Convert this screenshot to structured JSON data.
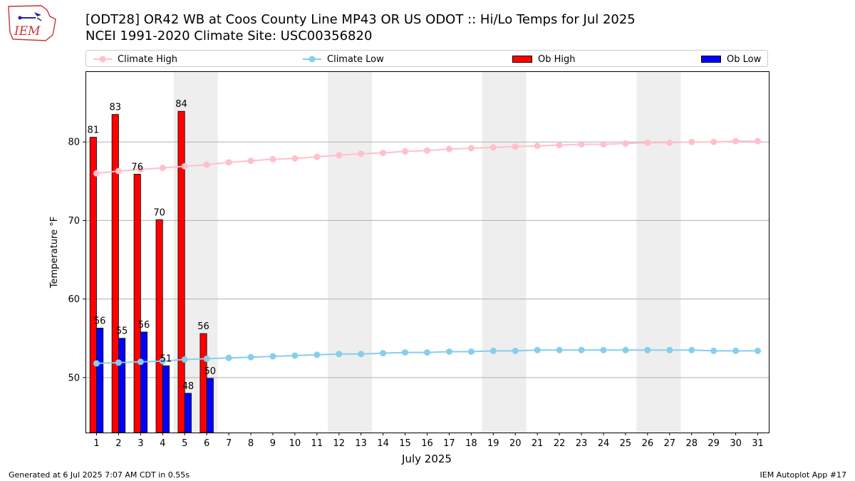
{
  "header": {
    "title_line1": "[ODT28] OR42 WB at Coos County Line MP43 OR US ODOT :: Hi/Lo Temps for Jul 2025",
    "title_line2": "NCEI 1991-2020 Climate Site: USC00356820",
    "logo_text": "IEM"
  },
  "legend": {
    "climate_high": "Climate High",
    "climate_low": "Climate Low",
    "ob_high": "Ob High",
    "ob_low": "Ob Low"
  },
  "footer": {
    "generated": "Generated at 6 Jul 2025 7:07 AM CDT in 0.55s",
    "app": "IEM Autoplot App #17"
  },
  "colors": {
    "climate_high": "#ffc0cb",
    "climate_low": "#87ceeb",
    "ob_high": "#ff0000",
    "ob_low": "#0000ff",
    "weekend_shade": "#eeeeee"
  },
  "chart_data": {
    "type": "bar",
    "xlabel": "July 2025",
    "ylabel": "Temperature °F",
    "xlim": [
      0.5,
      31.5
    ],
    "ylim": [
      43,
      89
    ],
    "yticks": [
      50,
      60,
      70,
      80
    ],
    "grid": "y",
    "legend_position": "top",
    "days": [
      1,
      2,
      3,
      4,
      5,
      6,
      7,
      8,
      9,
      10,
      11,
      12,
      13,
      14,
      15,
      16,
      17,
      18,
      19,
      20,
      21,
      22,
      23,
      24,
      25,
      26,
      27,
      28,
      29,
      30,
      31
    ],
    "weekend_spans": [
      [
        5,
        6
      ],
      [
        12,
        13
      ],
      [
        19,
        20
      ],
      [
        26,
        27
      ]
    ],
    "series": [
      {
        "name": "Climate High",
        "type": "line",
        "values": [
          76.0,
          76.3,
          76.5,
          76.7,
          76.9,
          77.1,
          77.4,
          77.6,
          77.8,
          77.9,
          78.1,
          78.3,
          78.5,
          78.6,
          78.8,
          78.9,
          79.1,
          79.2,
          79.3,
          79.4,
          79.5,
          79.6,
          79.7,
          79.7,
          79.8,
          79.9,
          79.9,
          80.0,
          80.0,
          80.1,
          80.1
        ]
      },
      {
        "name": "Climate Low",
        "type": "line",
        "values": [
          51.8,
          51.9,
          52.0,
          52.1,
          52.3,
          52.4,
          52.5,
          52.6,
          52.7,
          52.8,
          52.9,
          53.0,
          53.0,
          53.1,
          53.2,
          53.2,
          53.3,
          53.3,
          53.4,
          53.4,
          53.5,
          53.5,
          53.5,
          53.5,
          53.5,
          53.5,
          53.5,
          53.5,
          53.4,
          53.4,
          53.4
        ]
      },
      {
        "name": "Ob High",
        "type": "bar",
        "values": [
          80.6,
          83.5,
          75.9,
          70.1,
          83.9,
          55.6
        ],
        "labels": [
          "81",
          "83",
          "76",
          "70",
          "84",
          "56"
        ]
      },
      {
        "name": "Ob Low",
        "type": "bar",
        "values": [
          56.3,
          55.0,
          55.8,
          51.5,
          48.0,
          49.9
        ],
        "labels": [
          "56",
          "55",
          "56",
          "51",
          "48",
          "50"
        ]
      }
    ]
  }
}
